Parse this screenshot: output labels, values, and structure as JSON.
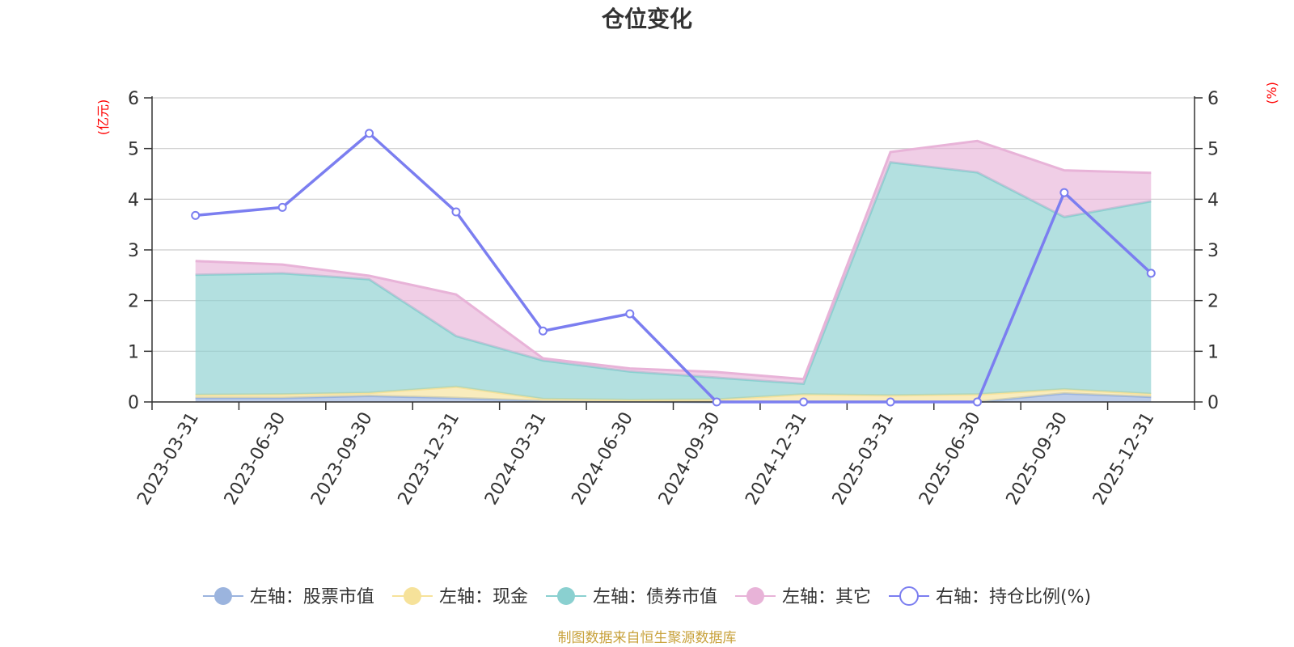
{
  "chart_data": {
    "type": "area",
    "title": "仓位变化",
    "left_axis_unit": "(亿元)",
    "right_axis_unit": "(%)",
    "ylim_left": [
      0,
      6
    ],
    "ylim_right": [
      0,
      6
    ],
    "y_ticks": [
      "0",
      "1",
      "2",
      "3",
      "4",
      "5",
      "6"
    ],
    "grid": true,
    "legend_position": "bottom",
    "categories": [
      "2023-03-31",
      "2023-06-30",
      "2023-09-30",
      "2023-12-31",
      "2024-03-31",
      "2024-06-30",
      "2024-09-30",
      "2024-12-31",
      "2025-03-31",
      "2025-06-30",
      "2025-09-30",
      "2025-12-31"
    ],
    "series": [
      {
        "name": "左轴：股票市值",
        "axis": "left",
        "stack": true,
        "color": "#9bb4de",
        "values": [
          0.08,
          0.08,
          0.12,
          0.08,
          0.02,
          0.01,
          0.0,
          0.0,
          0.0,
          0.0,
          0.17,
          0.1
        ]
      },
      {
        "name": "左轴：现金",
        "axis": "left",
        "stack": true,
        "color": "#f6e29a",
        "values": [
          0.06,
          0.07,
          0.06,
          0.22,
          0.04,
          0.03,
          0.05,
          0.15,
          0.13,
          0.15,
          0.08,
          0.06
        ]
      },
      {
        "name": "左轴：债券市值",
        "axis": "left",
        "stack": true,
        "color": "#8ad0d0",
        "values": [
          2.37,
          2.39,
          2.24,
          1.0,
          0.76,
          0.56,
          0.43,
          0.21,
          4.6,
          4.38,
          3.4,
          3.8
        ]
      },
      {
        "name": "左轴：其它",
        "axis": "left",
        "stack": true,
        "color": "#e8b3d8",
        "values": [
          0.27,
          0.17,
          0.07,
          0.82,
          0.04,
          0.06,
          0.11,
          0.09,
          0.2,
          0.62,
          0.92,
          0.56
        ]
      },
      {
        "name": "右轴：持仓比例(%)",
        "axis": "right",
        "type": "line",
        "color": "#7b7ef0",
        "values": [
          3.68,
          3.84,
          5.3,
          3.75,
          1.4,
          1.74,
          0.0,
          0.0,
          0.0,
          0.0,
          4.13,
          2.54
        ]
      }
    ]
  },
  "source_note": "制图数据来自恒生聚源数据库"
}
